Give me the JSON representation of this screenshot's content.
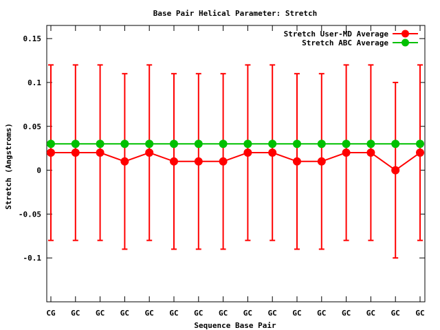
{
  "chart_data": {
    "type": "line",
    "title": "Base Pair Helical Parameter: Stretch",
    "xlabel": "Sequence Base Pair",
    "ylabel": "Stretch (Angstroms)",
    "ylim": [
      -0.15,
      0.165
    ],
    "yticks": [
      0.15,
      0.1,
      0.05,
      0,
      -0.05,
      -0.1
    ],
    "ytick_labels": [
      "0.15",
      "0.1",
      "0.05",
      "0",
      "-0.05",
      "-0.1"
    ],
    "categories": [
      "CG",
      "GC",
      "GC",
      "GC",
      "GC",
      "GC",
      "GC",
      "GC",
      "GC",
      "GC",
      "GC",
      "GC",
      "GC",
      "GC",
      "GC",
      "GC"
    ],
    "legend_position": "top-right",
    "grid": false,
    "series": [
      {
        "name": "Stretch User-MD Average",
        "color": "#ff0000",
        "values": [
          0.02,
          0.02,
          0.02,
          0.01,
          0.02,
          0.01,
          0.01,
          0.01,
          0.02,
          0.02,
          0.01,
          0.01,
          0.02,
          0.02,
          0.0,
          0.02
        ],
        "error_low": [
          -0.08,
          -0.08,
          -0.08,
          -0.09,
          -0.08,
          -0.09,
          -0.09,
          -0.09,
          -0.08,
          -0.08,
          -0.09,
          -0.09,
          -0.08,
          -0.08,
          -0.1,
          -0.08
        ],
        "error_high": [
          0.12,
          0.12,
          0.12,
          0.11,
          0.12,
          0.11,
          0.11,
          0.11,
          0.12,
          0.12,
          0.11,
          0.11,
          0.12,
          0.12,
          0.1,
          0.12
        ]
      },
      {
        "name": "Stretch ABC Average",
        "color": "#00c000",
        "values": [
          0.03,
          0.03,
          0.03,
          0.03,
          0.03,
          0.03,
          0.03,
          0.03,
          0.03,
          0.03,
          0.03,
          0.03,
          0.03,
          0.03,
          0.03,
          0.03
        ]
      }
    ]
  }
}
